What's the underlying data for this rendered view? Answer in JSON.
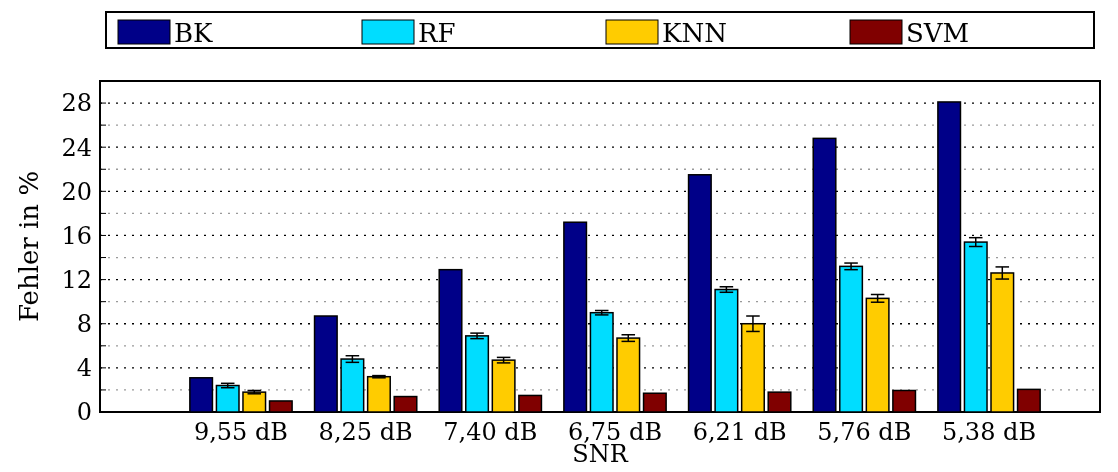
{
  "chart_data": {
    "type": "bar",
    "xlabel": "SNR",
    "ylabel": "Fehler in %",
    "categories": [
      "9,55 dB",
      "8,25 dB",
      "7,40 dB",
      "6,75 dB",
      "6,21 dB",
      "5,76 dB",
      "5,38 dB"
    ],
    "series": [
      {
        "name": "BK",
        "color": "#000088",
        "values": [
          3.1,
          8.7,
          12.9,
          17.2,
          21.5,
          24.8,
          28.1
        ]
      },
      {
        "name": "RF",
        "color": "#00ddff",
        "values": [
          2.4,
          4.8,
          6.9,
          9.0,
          11.1,
          13.2,
          15.4
        ],
        "errors": [
          0.2,
          0.3,
          0.25,
          0.2,
          0.25,
          0.3,
          0.4
        ]
      },
      {
        "name": "KNN",
        "color": "#ffcc00",
        "values": [
          1.8,
          3.2,
          4.7,
          6.7,
          8.0,
          10.3,
          12.6
        ],
        "errors": [
          0.15,
          0.1,
          0.25,
          0.3,
          0.7,
          0.35,
          0.55
        ]
      },
      {
        "name": "SVM",
        "color": "#800000",
        "values": [
          1.0,
          1.4,
          1.5,
          1.7,
          1.8,
          1.95,
          2.05
        ]
      }
    ],
    "ylim": [
      0,
      30
    ],
    "yticks": [
      0,
      {
        "value": 2,
        "label": null
      },
      4,
      {
        "value": 6,
        "label": null
      },
      8,
      {
        "value": 10,
        "label": null
      },
      12,
      {
        "value": 14,
        "label": null
      },
      16,
      {
        "value": 18,
        "label": null
      },
      20,
      {
        "value": 22,
        "label": null
      },
      24,
      {
        "value": 26,
        "label": null
      },
      28
    ],
    "grid": true,
    "legend": "top"
  }
}
